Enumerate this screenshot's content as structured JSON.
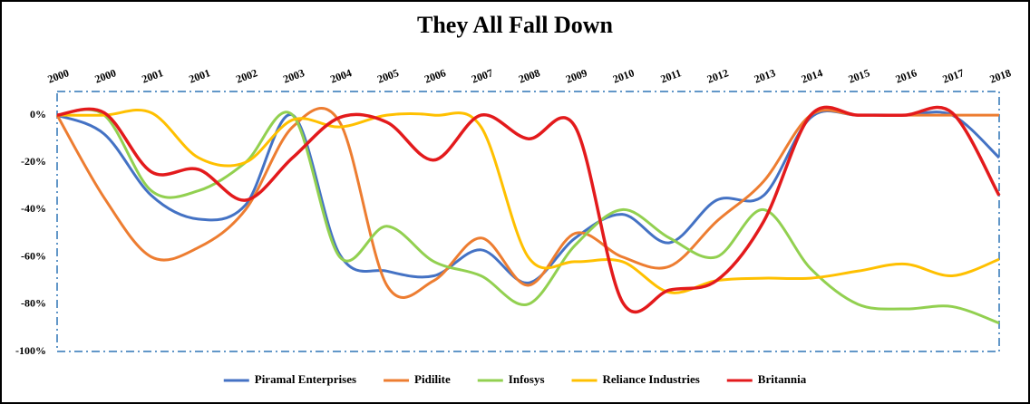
{
  "chart_data": {
    "type": "line",
    "title": "They All Fall Down",
    "categories": [
      "2000",
      "2000",
      "2001",
      "2001",
      "2002",
      "2003",
      "2004",
      "2005",
      "2006",
      "2007",
      "2008",
      "2009",
      "2010",
      "2011",
      "2012",
      "2013",
      "2014",
      "2015",
      "2016",
      "2017",
      "2018"
    ],
    "ylim": [
      -100,
      10
    ],
    "yticks": [
      {
        "value": 0,
        "label": "0%"
      },
      {
        "value": -20,
        "label": "-20%"
      },
      {
        "value": -40,
        "label": "-40%"
      },
      {
        "value": -60,
        "label": "-60%"
      },
      {
        "value": -80,
        "label": "-80%"
      },
      {
        "value": -100,
        "label": "-100%"
      }
    ],
    "grid": false,
    "legend": "bottom",
    "series": [
      {
        "name": "Piramal Enterprises",
        "color": "#4472c4",
        "values": [
          0,
          -8,
          -34,
          -44,
          -38,
          0,
          -59,
          -66,
          -68,
          -57,
          -71,
          -52,
          -42,
          -54,
          -36,
          -34,
          -1,
          0,
          0,
          0,
          -18
        ]
      },
      {
        "name": "Pidilite",
        "color": "#ed7d31",
        "values": [
          0,
          -35,
          -60,
          -56,
          -40,
          -5,
          -3,
          -72,
          -70,
          -52,
          -72,
          -50,
          -60,
          -64,
          -45,
          -28,
          0,
          0,
          0,
          0,
          0
        ]
      },
      {
        "name": "Infosys",
        "color": "#92d050",
        "values": [
          0,
          0,
          -32,
          -32,
          -20,
          0,
          -60,
          -47,
          -62,
          -68,
          -80,
          -55,
          -40,
          -52,
          -60,
          -40,
          -65,
          -80,
          -82,
          -81,
          -88
        ]
      },
      {
        "name": "Reliance Industries",
        "color": "#ffc000",
        "values": [
          0,
          0,
          1,
          -18,
          -20,
          -2,
          -5,
          0,
          0,
          -5,
          -60,
          -62,
          -62,
          -75,
          -70,
          -69,
          -69,
          -66,
          -63,
          -68,
          -61
        ]
      },
      {
        "name": "Britannia",
        "color": "#e31a1c",
        "values": [
          0,
          1,
          -24,
          -23,
          -36,
          -18,
          -1,
          -3,
          -19,
          0,
          -10,
          -5,
          -79,
          -74,
          -70,
          -45,
          0,
          0,
          0,
          1,
          -34
        ]
      }
    ]
  }
}
